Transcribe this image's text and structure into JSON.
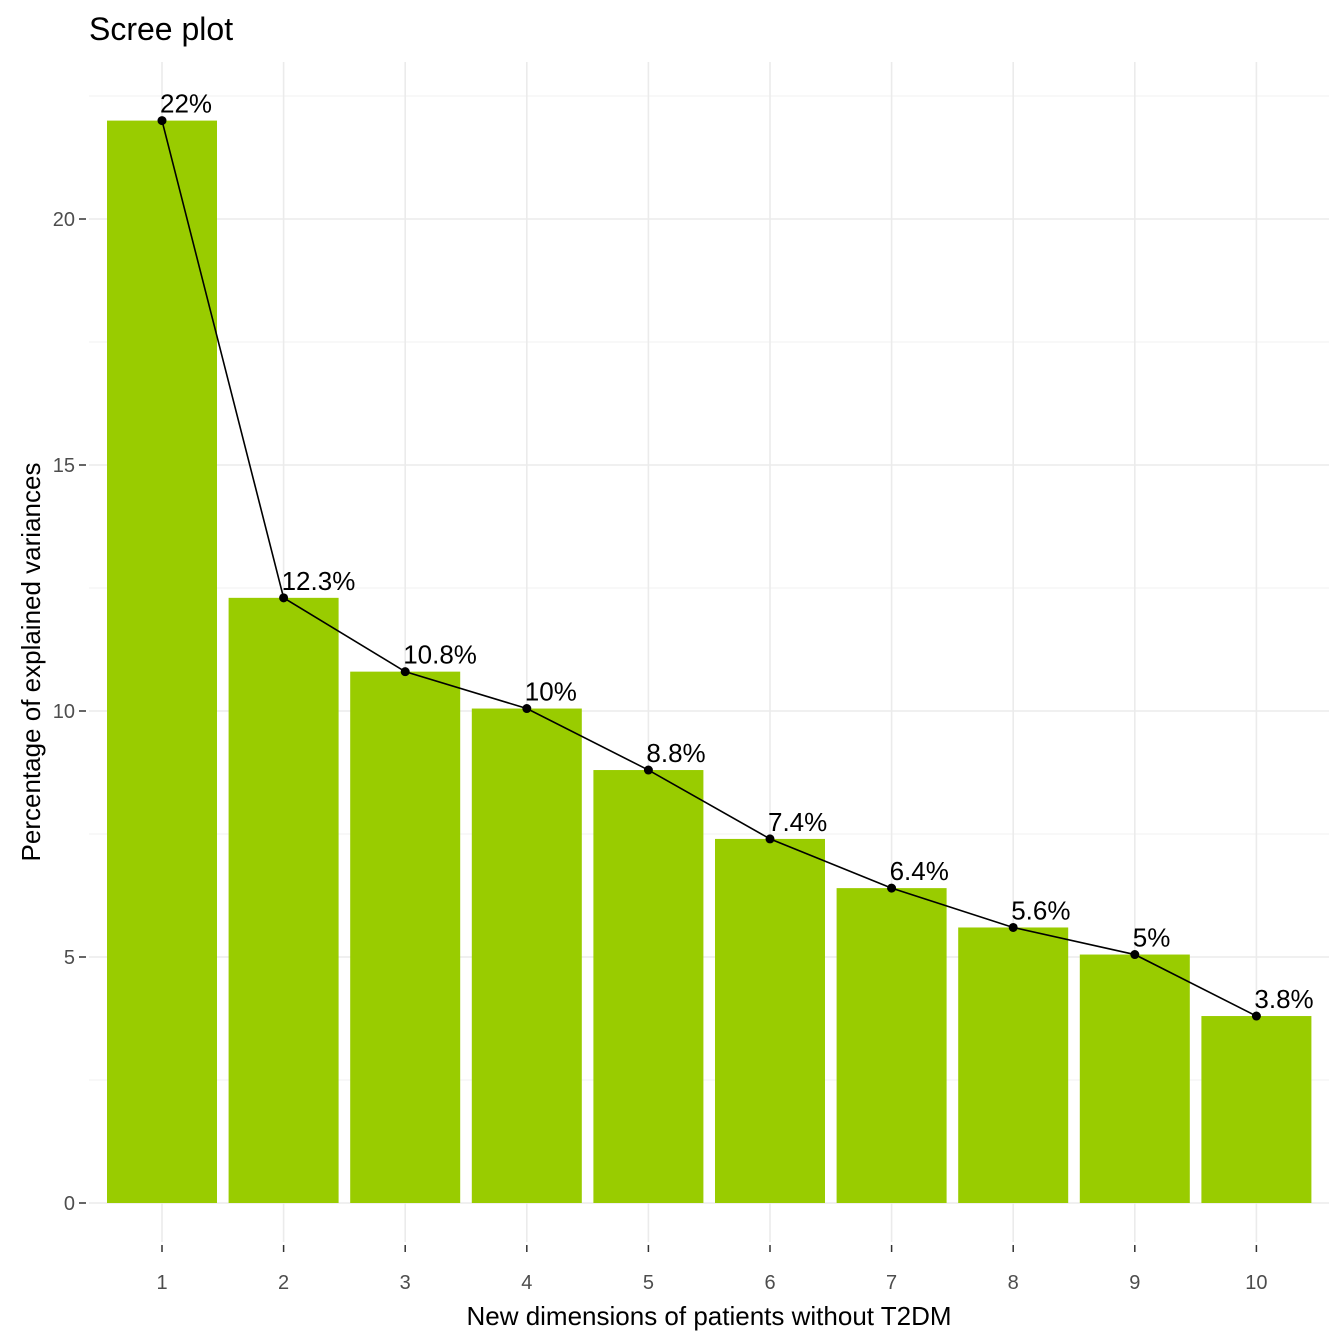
{
  "chart_data": {
    "type": "bar",
    "title": "Scree plot",
    "xlabel": "New dimensions of patients without T2DM",
    "ylabel": "Percentage of explained variances",
    "categories": [
      "1",
      "2",
      "3",
      "4",
      "5",
      "6",
      "7",
      "8",
      "9",
      "10"
    ],
    "values": [
      22.0,
      12.3,
      10.8,
      10.05,
      8.8,
      7.4,
      6.4,
      5.6,
      5.05,
      3.8
    ],
    "labels": [
      "22%",
      "12.3%",
      "10.8%",
      "10%",
      "8.8%",
      "7.4%",
      "6.4%",
      "5.6%",
      "5%",
      "3.8%"
    ],
    "yticks": [
      0,
      5,
      10,
      15,
      20
    ],
    "ylim": [
      0,
      22.8
    ],
    "grid": true,
    "line_overlay": true,
    "bar_color": "#99cc00",
    "line_color": "#000000"
  }
}
